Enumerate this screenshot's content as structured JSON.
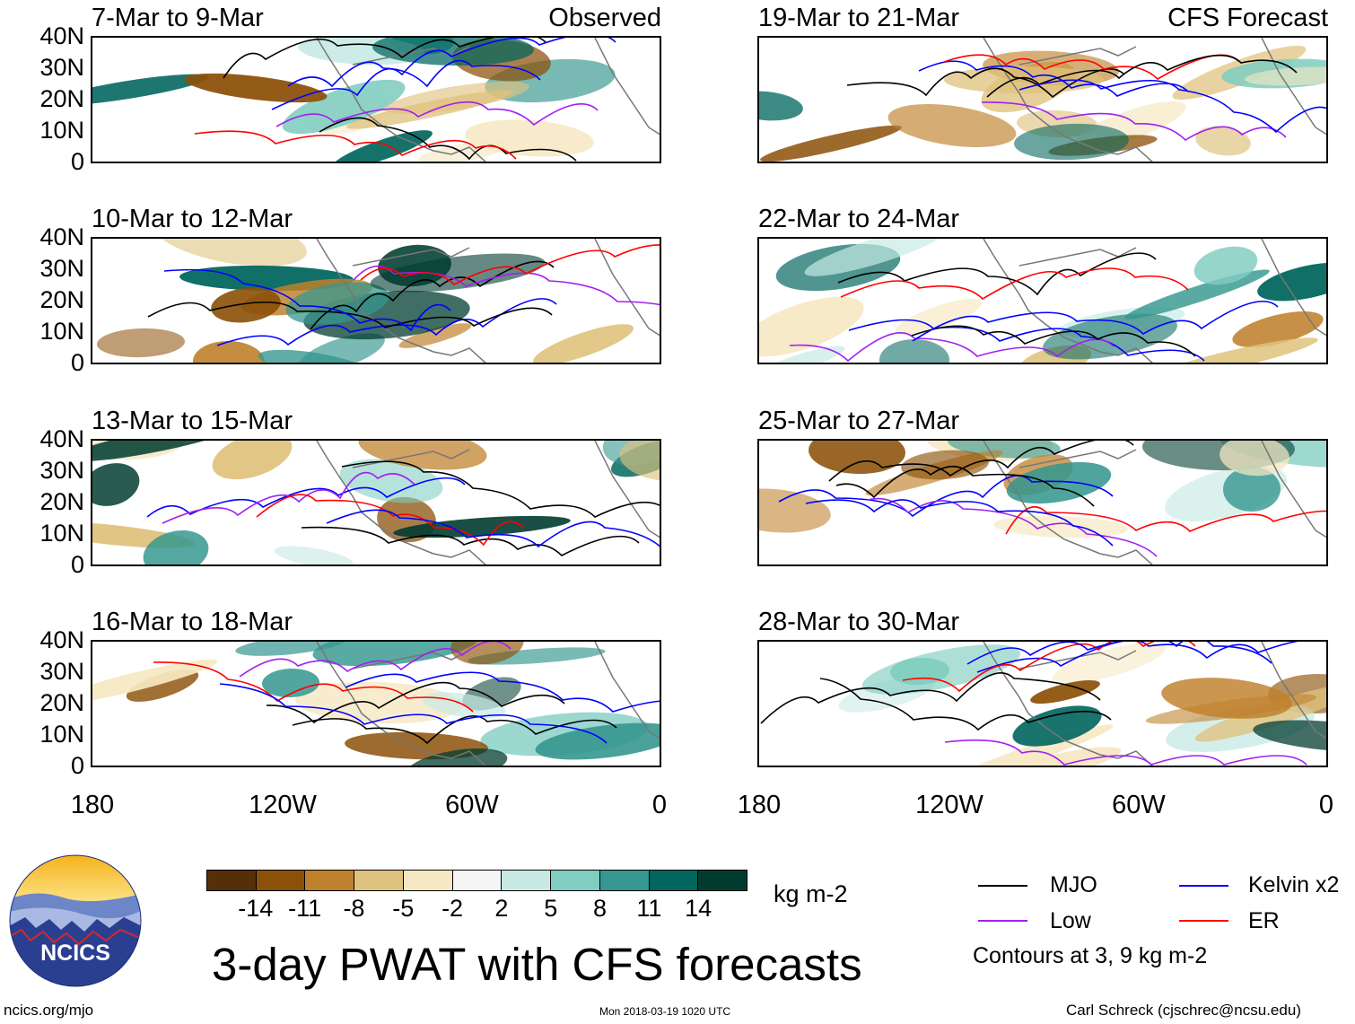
{
  "panels": [
    {
      "title": "7-Mar to 9-Mar",
      "label": "Observed"
    },
    {
      "title": "19-Mar to 21-Mar",
      "label": "CFS Forecast"
    },
    {
      "title": "10-Mar to 12-Mar",
      "label": ""
    },
    {
      "title": "22-Mar to 24-Mar",
      "label": ""
    },
    {
      "title": "13-Mar to 15-Mar",
      "label": ""
    },
    {
      "title": "25-Mar to 27-Mar",
      "label": ""
    },
    {
      "title": "16-Mar to 18-Mar",
      "label": ""
    },
    {
      "title": "28-Mar to 30-Mar",
      "label": ""
    }
  ],
  "lat_labels": [
    "40N",
    "30N",
    "20N",
    "10N",
    "0"
  ],
  "lon_labels": [
    "180",
    "120W",
    "60W",
    "0"
  ],
  "colorbar": {
    "ticks": [
      "-14",
      "-11",
      "-8",
      "-5",
      "-2",
      "2",
      "5",
      "8",
      "11",
      "14"
    ],
    "colors": [
      "#54300a",
      "#8c5109",
      "#bf812c",
      "#dfc27d",
      "#f6e8c3",
      "#f5f5f5",
      "#c7eae5",
      "#80cdc1",
      "#35978f",
      "#01665e",
      "#003c30"
    ],
    "units": "kg m-2"
  },
  "legend": {
    "items": [
      {
        "label": "MJO",
        "color": "#000000"
      },
      {
        "label": "Kelvin x2",
        "color": "#0000ff"
      },
      {
        "label": "Low",
        "color": "#a020f0"
      },
      {
        "label": "ER",
        "color": "#ff0000"
      }
    ],
    "note": "Contours at 3, 9 kg m-2"
  },
  "title": "3-day PWAT with CFS forecasts",
  "logo_text": "NCICS",
  "footer": {
    "left": "ncics.org/mjo",
    "center": "Mon 2018-03-19 1020 UTC",
    "right": "Carl Schreck (cjschrec@ncsu.edu)"
  }
}
